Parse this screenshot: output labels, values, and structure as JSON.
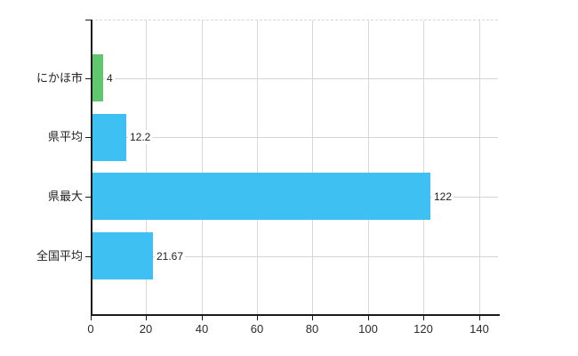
{
  "chart_data": {
    "type": "bar",
    "orientation": "horizontal",
    "title": "",
    "xlabel": "",
    "ylabel": "",
    "categories": [
      "にかほ市",
      "県平均",
      "県最大",
      "全国平均"
    ],
    "values": [
      4,
      12.2,
      122,
      21.67
    ],
    "value_labels": [
      "4",
      "12.2",
      "122",
      "21.67"
    ],
    "bar_colors": [
      "#5fc76e",
      "#3ec1f2",
      "#3ec1f2",
      "#3ec1f2"
    ],
    "x_ticks": [
      0,
      20,
      40,
      60,
      80,
      100,
      120,
      140
    ],
    "x_tick_labels": [
      "0",
      "20",
      "40",
      "60",
      "80",
      "100",
      "120",
      "140"
    ],
    "xlim": [
      0,
      146.7
    ],
    "grid": true,
    "legend": false,
    "background_color": "#ffffff",
    "axis_color": "#1a1a1a",
    "gridline_color": "#d8d8d8"
  }
}
